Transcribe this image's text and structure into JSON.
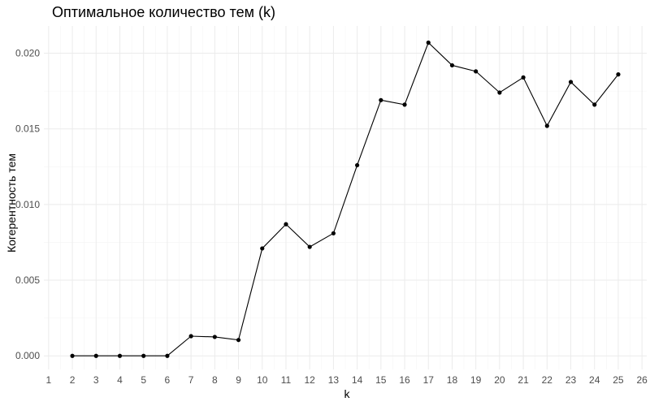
{
  "chart_data": {
    "type": "line",
    "title": "Оптимальное количество тем (k)",
    "xlabel": "k",
    "ylabel": "Когерентность тем",
    "xlim": [
      0.8,
      26.2
    ],
    "ylim": [
      -0.0009,
      0.0218
    ],
    "xticks": [
      1,
      2,
      3,
      4,
      5,
      6,
      7,
      8,
      9,
      10,
      11,
      12,
      13,
      14,
      15,
      16,
      17,
      18,
      19,
      20,
      21,
      22,
      23,
      24,
      25,
      26
    ],
    "yticks": [
      0.0,
      0.005,
      0.01,
      0.015,
      0.02
    ],
    "ytick_labels": [
      "0.000",
      "0.005",
      "0.010",
      "0.015",
      "0.020"
    ],
    "grid": true,
    "series": [
      {
        "x": [
          2,
          3,
          4,
          5,
          6,
          7,
          8,
          9,
          10,
          11,
          12,
          13,
          14,
          15,
          16,
          17,
          18,
          19,
          20,
          21,
          22,
          23,
          24,
          25
        ],
        "values": [
          0.0,
          0.0,
          0.0,
          0.0,
          0.0,
          0.0013,
          0.00125,
          0.00105,
          0.0071,
          0.0087,
          0.0072,
          0.0081,
          0.0126,
          0.0169,
          0.0166,
          0.0207,
          0.0192,
          0.0188,
          0.0174,
          0.0184,
          0.0152,
          0.0181,
          0.0166,
          0.0186
        ]
      }
    ],
    "colors": {
      "line": "#000000",
      "point": "#000000",
      "grid_major": "#ebebeb",
      "grid_minor": "#f5f5f5"
    }
  }
}
